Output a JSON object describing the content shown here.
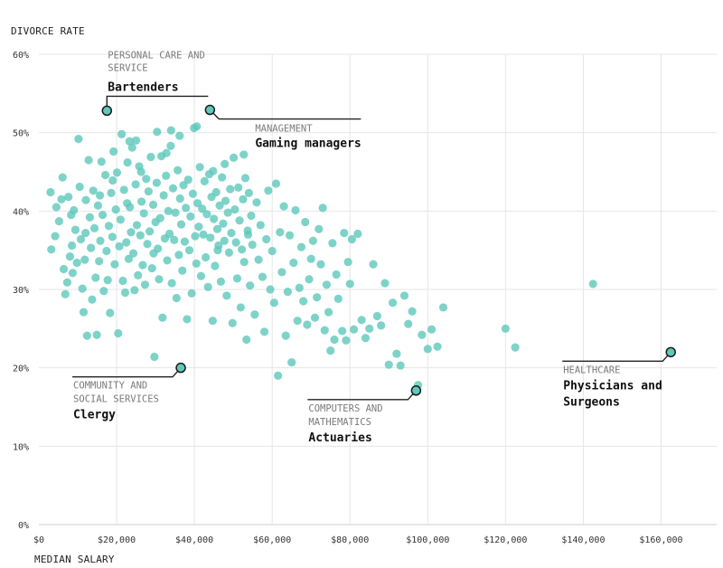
{
  "chart_data": {
    "type": "scatter",
    "ylabel": "DIVORCE RATE",
    "xlabel": "MEDIAN SALARY",
    "xlim": [
      0,
      175000
    ],
    "ylim": [
      0,
      60
    ],
    "x_ticks": [
      0,
      20000,
      40000,
      60000,
      80000,
      100000,
      120000,
      140000,
      160000
    ],
    "x_tick_labels": [
      "$0",
      "$20,000",
      "$40,000",
      "$60,000",
      "$80,000",
      "$100,000",
      "$120,000",
      "$140,000",
      "$160,000"
    ],
    "y_ticks": [
      0,
      10,
      20,
      30,
      40,
      50,
      60
    ],
    "y_tick_labels": [
      "0%",
      "10%",
      "20%",
      "30%",
      "40%",
      "50%",
      "60%"
    ],
    "color": "#5ec8bb",
    "highlighted": [
      {
        "category": [
          "PERSONAL CARE AND",
          "SERVICE"
        ],
        "name": [
          "Bartenders"
        ],
        "x": 17500,
        "y": 52.8,
        "side": "above"
      },
      {
        "category": [
          "MANAGEMENT"
        ],
        "name": [
          "Gaming managers"
        ],
        "x": 44000,
        "y": 52.9,
        "side": "right"
      },
      {
        "category": [
          "COMMUNITY AND",
          "SOCIAL SERVICES"
        ],
        "name": [
          "Clergy"
        ],
        "x": 36500,
        "y": 20.0,
        "side": "left"
      },
      {
        "category": [
          "COMPUTERS AND",
          "MATHEMATICS"
        ],
        "name": [
          "Actuaries"
        ],
        "x": 97000,
        "y": 17.1,
        "side": "left"
      },
      {
        "category": [
          "HEALTHCARE"
        ],
        "name": [
          "Physicians and",
          "Surgeons"
        ],
        "x": 162500,
        "y": 22.0,
        "side": "left"
      }
    ],
    "points": [
      [
        3000,
        42.4
      ],
      [
        3200,
        35.1
      ],
      [
        4200,
        36.8
      ],
      [
        4500,
        40.5
      ],
      [
        5200,
        38.7
      ],
      [
        5800,
        41.5
      ],
      [
        6100,
        44.3
      ],
      [
        6400,
        32.6
      ],
      [
        6800,
        29.4
      ],
      [
        7300,
        30.9
      ],
      [
        7600,
        41.8
      ],
      [
        8000,
        34.2
      ],
      [
        8300,
        39.5
      ],
      [
        8700,
        32.1
      ],
      [
        9000,
        40.1
      ],
      [
        9400,
        37.6
      ],
      [
        9800,
        33.4
      ],
      [
        10200,
        49.2
      ],
      [
        10500,
        43.1
      ],
      [
        10800,
        36.4
      ],
      [
        11200,
        30.1
      ],
      [
        11500,
        27.1
      ],
      [
        11800,
        33.8
      ],
      [
        12100,
        41.4
      ],
      [
        12400,
        24.1
      ],
      [
        12800,
        46.5
      ],
      [
        13100,
        39.2
      ],
      [
        13400,
        35.3
      ],
      [
        13700,
        28.7
      ],
      [
        14000,
        42.6
      ],
      [
        14300,
        37.8
      ],
      [
        14600,
        31.5
      ],
      [
        14900,
        24.2
      ],
      [
        15200,
        40.7
      ],
      [
        15500,
        33.6
      ],
      [
        15800,
        36.2
      ],
      [
        16100,
        46.3
      ],
      [
        16400,
        39.5
      ],
      [
        16700,
        29.8
      ],
      [
        17100,
        44.6
      ],
      [
        17400,
        34.9
      ],
      [
        17700,
        31.2
      ],
      [
        18000,
        38.1
      ],
      [
        18300,
        27.0
      ],
      [
        18600,
        42.3
      ],
      [
        18900,
        36.7
      ],
      [
        19200,
        47.6
      ],
      [
        19500,
        33.2
      ],
      [
        19800,
        40.2
      ],
      [
        20100,
        44.9
      ],
      [
        20400,
        24.4
      ],
      [
        20700,
        35.5
      ],
      [
        21000,
        38.9
      ],
      [
        21300,
        49.8
      ],
      [
        21600,
        31.1
      ],
      [
        21900,
        42.7
      ],
      [
        22200,
        29.6
      ],
      [
        22500,
        36.0
      ],
      [
        22800,
        46.2
      ],
      [
        23100,
        33.9
      ],
      [
        23400,
        40.5
      ],
      [
        23700,
        37.3
      ],
      [
        24000,
        48.1
      ],
      [
        24300,
        34.6
      ],
      [
        24600,
        29.9
      ],
      [
        24900,
        43.4
      ],
      [
        25200,
        38.2
      ],
      [
        25500,
        31.8
      ],
      [
        25800,
        45.7
      ],
      [
        26100,
        36.9
      ],
      [
        26400,
        41.2
      ],
      [
        26700,
        33.1
      ],
      [
        27000,
        39.7
      ],
      [
        27300,
        30.6
      ],
      [
        27600,
        44.1
      ],
      [
        27900,
        35.8
      ],
      [
        28200,
        42.5
      ],
      [
        28500,
        37.4
      ],
      [
        28800,
        46.9
      ],
      [
        29100,
        32.7
      ],
      [
        29400,
        40.8
      ],
      [
        29700,
        21.4
      ],
      [
        30000,
        38.6
      ],
      [
        30300,
        43.6
      ],
      [
        30600,
        35.2
      ],
      [
        30900,
        31.3
      ],
      [
        31200,
        39.1
      ],
      [
        31500,
        47.0
      ],
      [
        31800,
        26.4
      ],
      [
        32100,
        42.0
      ],
      [
        32400,
        36.5
      ],
      [
        32700,
        44.5
      ],
      [
        33000,
        33.7
      ],
      [
        33300,
        40.0
      ],
      [
        33600,
        37.1
      ],
      [
        33900,
        48.3
      ],
      [
        34200,
        30.8
      ],
      [
        34500,
        42.9
      ],
      [
        34800,
        36.3
      ],
      [
        35100,
        39.8
      ],
      [
        35400,
        28.9
      ],
      [
        35700,
        45.2
      ],
      [
        36000,
        34.4
      ],
      [
        36300,
        41.6
      ],
      [
        36600,
        38.3
      ],
      [
        36900,
        32.4
      ],
      [
        37200,
        43.3
      ],
      [
        37500,
        36.1
      ],
      [
        37800,
        40.4
      ],
      [
        38100,
        26.2
      ],
      [
        38400,
        44.0
      ],
      [
        38700,
        35.0
      ],
      [
        39000,
        39.3
      ],
      [
        39300,
        29.5
      ],
      [
        39600,
        42.2
      ],
      [
        39900,
        50.6
      ],
      [
        40200,
        36.8
      ],
      [
        40500,
        33.3
      ],
      [
        40800,
        41.0
      ],
      [
        41100,
        38.0
      ],
      [
        41400,
        45.6
      ],
      [
        41700,
        31.7
      ],
      [
        42000,
        40.3
      ],
      [
        42300,
        37.0
      ],
      [
        42600,
        43.8
      ],
      [
        42900,
        34.1
      ],
      [
        43200,
        39.6
      ],
      [
        43500,
        30.3
      ],
      [
        43800,
        44.7
      ],
      [
        44100,
        36.6
      ],
      [
        44400,
        41.8
      ],
      [
        44700,
        26.0
      ],
      [
        45000,
        39.0
      ],
      [
        45300,
        33.0
      ],
      [
        45600,
        42.4
      ],
      [
        45900,
        37.7
      ],
      [
        46200,
        35.6
      ],
      [
        46500,
        40.7
      ],
      [
        46800,
        31.0
      ],
      [
        47100,
        44.3
      ],
      [
        47400,
        38.4
      ],
      [
        47700,
        36.2
      ],
      [
        48000,
        41.3
      ],
      [
        48300,
        29.2
      ],
      [
        48600,
        39.8
      ],
      [
        48900,
        34.7
      ],
      [
        49200,
        42.8
      ],
      [
        49500,
        37.2
      ],
      [
        49800,
        25.7
      ],
      [
        50100,
        46.8
      ],
      [
        50400,
        40.2
      ],
      [
        50700,
        36.0
      ],
      [
        51000,
        31.4
      ],
      [
        51300,
        43.0
      ],
      [
        51600,
        38.8
      ],
      [
        51900,
        27.7
      ],
      [
        52200,
        35.1
      ],
      [
        52500,
        41.5
      ],
      [
        52800,
        33.5
      ],
      [
        53100,
        44.2
      ],
      [
        53400,
        23.6
      ],
      [
        53700,
        37.5
      ],
      [
        54000,
        42.3
      ],
      [
        54300,
        30.5
      ],
      [
        54600,
        39.4
      ],
      [
        54900,
        35.7
      ],
      [
        55500,
        26.8
      ],
      [
        56000,
        41.1
      ],
      [
        56500,
        33.8
      ],
      [
        57000,
        38.2
      ],
      [
        57500,
        31.6
      ],
      [
        58000,
        24.6
      ],
      [
        58500,
        36.4
      ],
      [
        59000,
        42.6
      ],
      [
        59500,
        30.0
      ],
      [
        60000,
        34.9
      ],
      [
        60500,
        28.3
      ],
      [
        61000,
        43.5
      ],
      [
        61500,
        19.0
      ],
      [
        62000,
        37.3
      ],
      [
        62500,
        32.2
      ],
      [
        63000,
        40.6
      ],
      [
        63500,
        24.1
      ],
      [
        64000,
        29.7
      ],
      [
        64500,
        36.9
      ],
      [
        65000,
        20.7
      ],
      [
        65500,
        33.4
      ],
      [
        66000,
        40.1
      ],
      [
        66500,
        26.0
      ],
      [
        67000,
        30.2
      ],
      [
        67500,
        35.4
      ],
      [
        68000,
        28.5
      ],
      [
        68500,
        38.6
      ],
      [
        69000,
        25.5
      ],
      [
        69500,
        31.3
      ],
      [
        70000,
        33.9
      ],
      [
        70500,
        36.2
      ],
      [
        71000,
        26.4
      ],
      [
        71500,
        29.0
      ],
      [
        72000,
        37.7
      ],
      [
        72500,
        33.2
      ],
      [
        73000,
        40.4
      ],
      [
        73500,
        24.8
      ],
      [
        74000,
        30.6
      ],
      [
        74500,
        27.1
      ],
      [
        75000,
        22.2
      ],
      [
        75500,
        35.9
      ],
      [
        76000,
        23.6
      ],
      [
        76500,
        31.9
      ],
      [
        77000,
        28.8
      ],
      [
        78000,
        24.7
      ],
      [
        78500,
        37.2
      ],
      [
        79000,
        23.5
      ],
      [
        79500,
        33.5
      ],
      [
        80000,
        30.7
      ],
      [
        80500,
        36.4
      ],
      [
        81000,
        24.9
      ],
      [
        82000,
        37.1
      ],
      [
        83000,
        26.1
      ],
      [
        84000,
        23.8
      ],
      [
        85000,
        25.0
      ],
      [
        86000,
        33.2
      ],
      [
        87000,
        26.6
      ],
      [
        88000,
        25.4
      ],
      [
        89000,
        30.8
      ],
      [
        90000,
        20.4
      ],
      [
        91000,
        28.3
      ],
      [
        92000,
        21.8
      ],
      [
        93000,
        20.3
      ],
      [
        94000,
        29.2
      ],
      [
        95000,
        25.6
      ],
      [
        96000,
        27.2
      ],
      [
        97500,
        17.8
      ],
      [
        98500,
        24.2
      ],
      [
        100000,
        22.4
      ],
      [
        101000,
        24.9
      ],
      [
        102500,
        22.7
      ],
      [
        104000,
        27.7
      ],
      [
        120000,
        25.0
      ],
      [
        122500,
        22.6
      ],
      [
        142500,
        30.7
      ],
      [
        8500,
        35.6
      ],
      [
        12000,
        37.2
      ],
      [
        15700,
        42.0
      ],
      [
        19000,
        43.9
      ],
      [
        22700,
        41.0
      ],
      [
        26300,
        45.0
      ],
      [
        29500,
        34.6
      ],
      [
        32800,
        47.4
      ],
      [
        36200,
        49.6
      ],
      [
        40600,
        50.8
      ],
      [
        34000,
        50.3
      ],
      [
        30400,
        50.1
      ],
      [
        25000,
        49.0
      ],
      [
        23300,
        48.9
      ],
      [
        46000,
        35.0
      ],
      [
        44800,
        45.1
      ],
      [
        47800,
        46.0
      ],
      [
        52700,
        47.2
      ],
      [
        53800,
        37.0
      ]
    ]
  }
}
